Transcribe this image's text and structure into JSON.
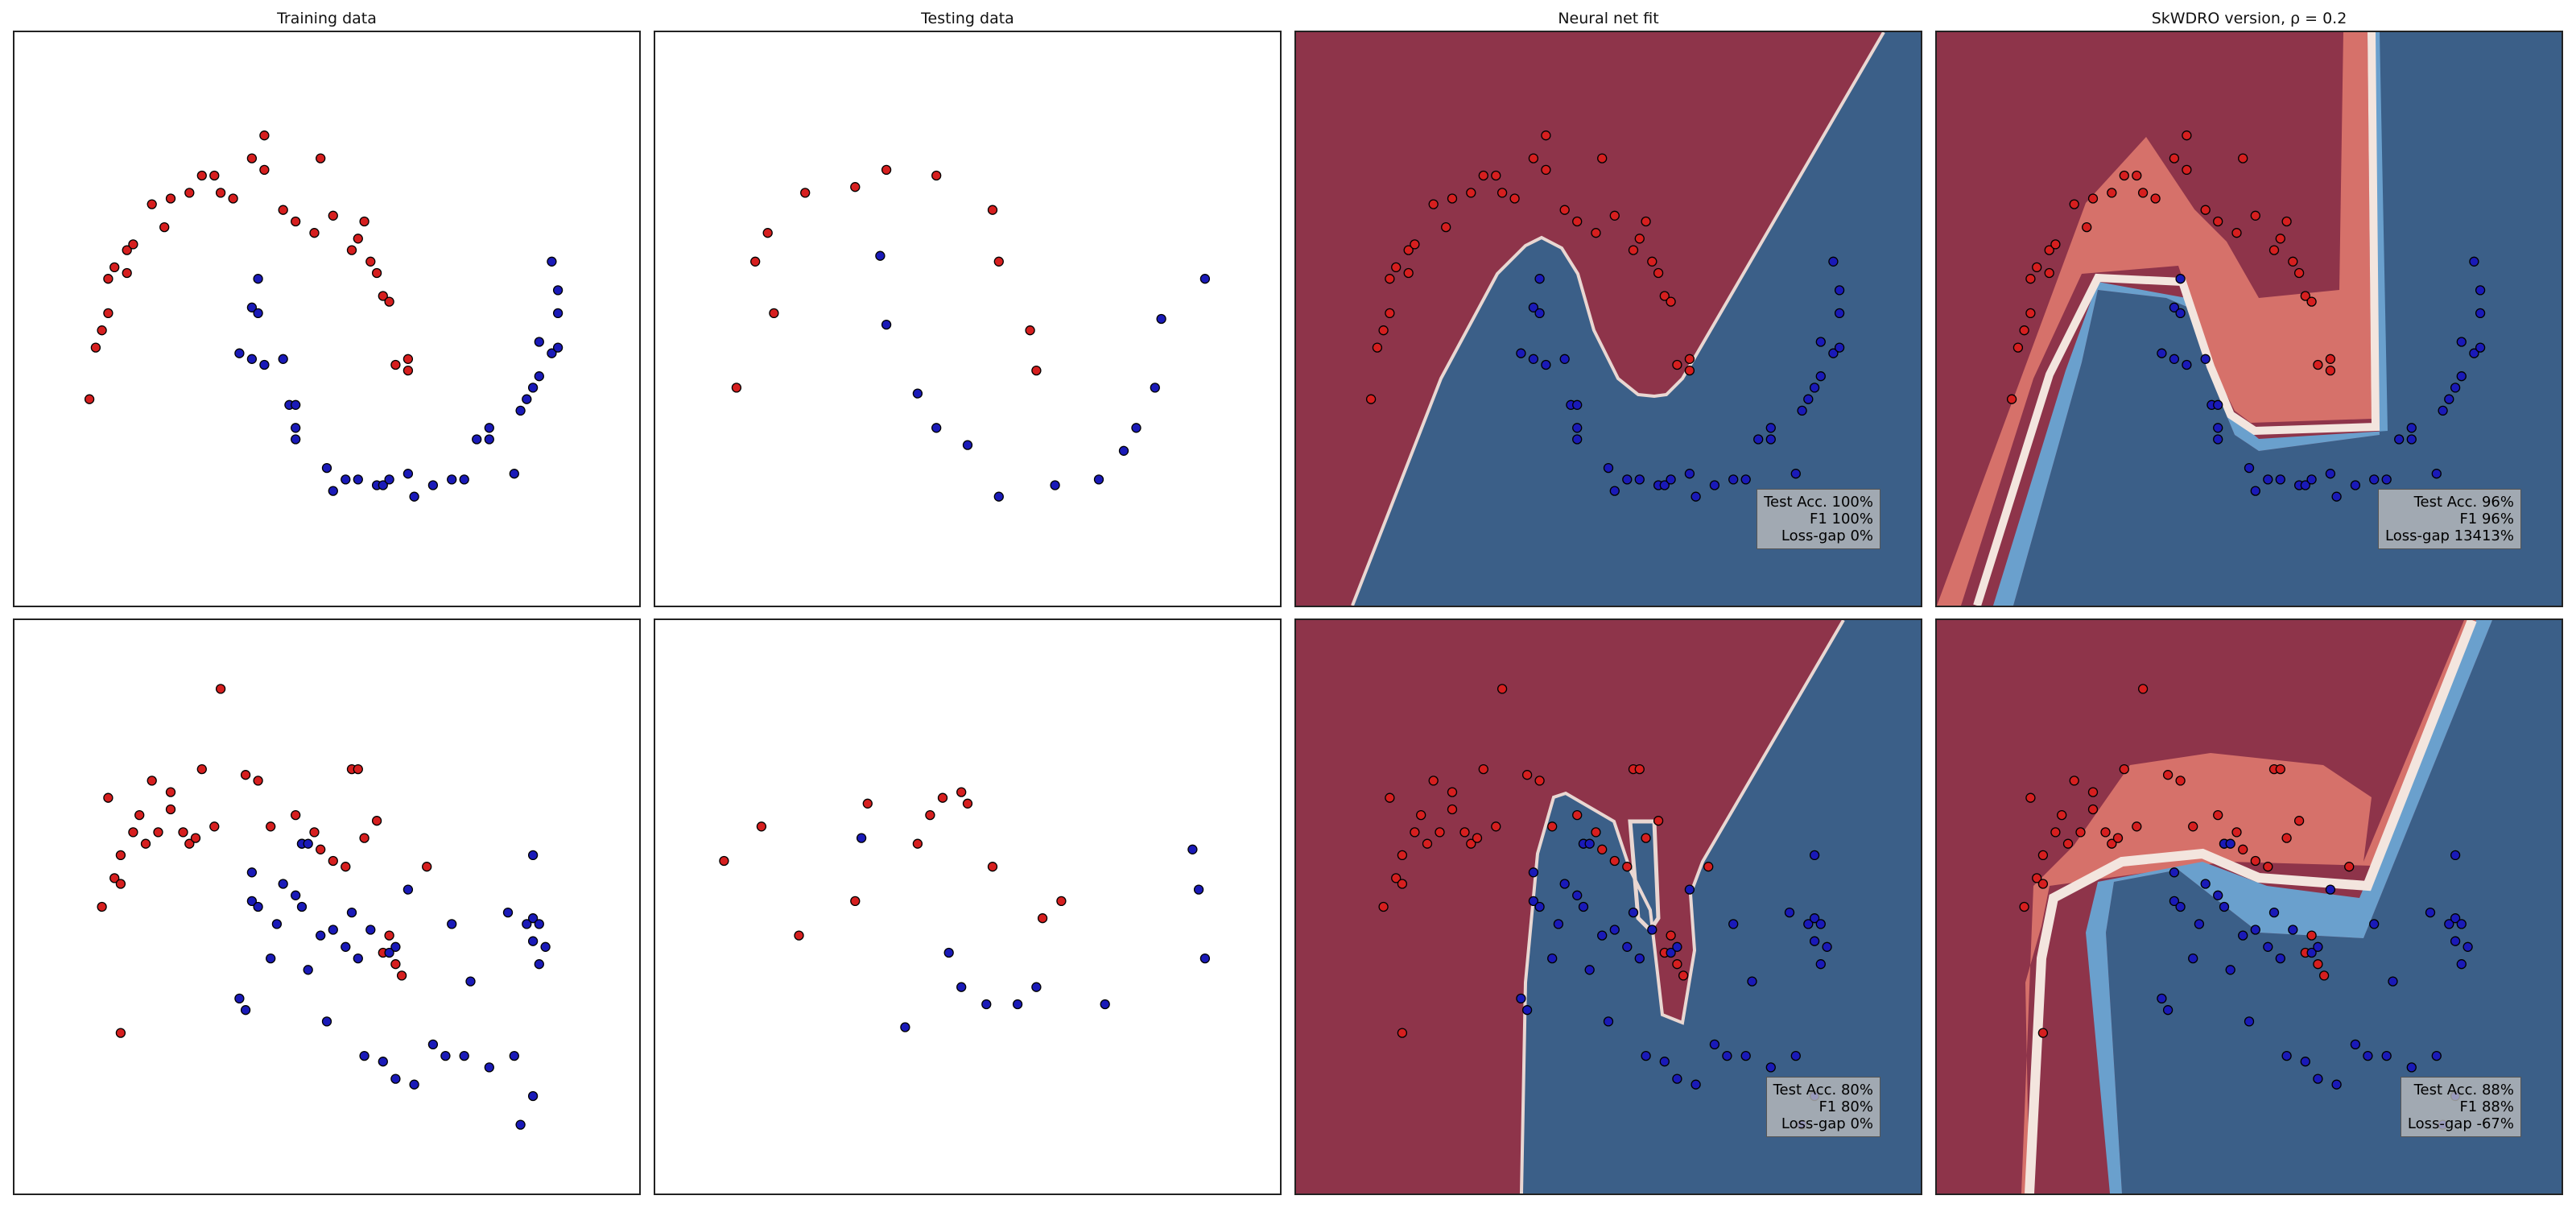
{
  "column_titles": [
    "Training data",
    "Testing data",
    "Neural net fit",
    "SkWDRO version, ρ = 0.2"
  ],
  "colors": {
    "red_class": "#d61f1f",
    "blue_class": "#1a1ab8",
    "red_region": "#8e344a",
    "blue_region": "#3b5f88",
    "red_light": "#d6716a",
    "blue_light": "#6aa0cd",
    "boundary": "#f3e5de"
  },
  "metrics": [
    {
      "panel": "row1-neural-net",
      "test_acc": "Test Acc. 100%",
      "f1": "F1 100%",
      "loss_gap": "Loss-gap 0%"
    },
    {
      "panel": "row1-skwdro",
      "test_acc": "Test Acc. 96%",
      "f1": "F1 96%",
      "loss_gap": "Loss-gap 13413%"
    },
    {
      "panel": "row2-neural-net",
      "test_acc": "Test Acc. 80%",
      "f1": "F1 80%",
      "loss_gap": "Loss-gap 0%"
    },
    {
      "panel": "row2-skwdro",
      "test_acc": "Test Acc. 88%",
      "f1": "F1 88%",
      "loss_gap": "Loss-gap -67%"
    }
  ],
  "chart_data": [
    {
      "type": "scatter",
      "row": 1,
      "xlim": [
        0,
        1
      ],
      "ylim": [
        0,
        1
      ],
      "train": [
        [
          0.12,
          0.36,
          "r"
        ],
        [
          0.13,
          0.45,
          "r"
        ],
        [
          0.14,
          0.48,
          "r"
        ],
        [
          0.15,
          0.51,
          "r"
        ],
        [
          0.15,
          0.57,
          "r"
        ],
        [
          0.16,
          0.59,
          "r"
        ],
        [
          0.18,
          0.58,
          "r"
        ],
        [
          0.18,
          0.62,
          "r"
        ],
        [
          0.19,
          0.63,
          "r"
        ],
        [
          0.22,
          0.7,
          "r"
        ],
        [
          0.24,
          0.66,
          "r"
        ],
        [
          0.25,
          0.71,
          "r"
        ],
        [
          0.28,
          0.72,
          "r"
        ],
        [
          0.3,
          0.75,
          "r"
        ],
        [
          0.32,
          0.75,
          "r"
        ],
        [
          0.33,
          0.72,
          "r"
        ],
        [
          0.35,
          0.71,
          "r"
        ],
        [
          0.38,
          0.78,
          "r"
        ],
        [
          0.4,
          0.76,
          "r"
        ],
        [
          0.4,
          0.82,
          "r"
        ],
        [
          0.43,
          0.69,
          "r"
        ],
        [
          0.45,
          0.67,
          "r"
        ],
        [
          0.48,
          0.65,
          "r"
        ],
        [
          0.49,
          0.78,
          "r"
        ],
        [
          0.51,
          0.68,
          "r"
        ],
        [
          0.54,
          0.62,
          "r"
        ],
        [
          0.55,
          0.64,
          "r"
        ],
        [
          0.56,
          0.67,
          "r"
        ],
        [
          0.57,
          0.6,
          "r"
        ],
        [
          0.58,
          0.58,
          "r"
        ],
        [
          0.59,
          0.54,
          "r"
        ],
        [
          0.6,
          0.53,
          "r"
        ],
        [
          0.61,
          0.42,
          "r"
        ],
        [
          0.63,
          0.43,
          "r"
        ],
        [
          0.63,
          0.41,
          "r"
        ],
        [
          0.36,
          0.44,
          "b"
        ],
        [
          0.38,
          0.43,
          "b"
        ],
        [
          0.38,
          0.52,
          "b"
        ],
        [
          0.39,
          0.51,
          "b"
        ],
        [
          0.39,
          0.57,
          "b"
        ],
        [
          0.4,
          0.42,
          "b"
        ],
        [
          0.43,
          0.43,
          "b"
        ],
        [
          0.44,
          0.35,
          "b"
        ],
        [
          0.45,
          0.35,
          "b"
        ],
        [
          0.45,
          0.31,
          "b"
        ],
        [
          0.45,
          0.29,
          "b"
        ],
        [
          0.5,
          0.24,
          "b"
        ],
        [
          0.51,
          0.2,
          "b"
        ],
        [
          0.53,
          0.22,
          "b"
        ],
        [
          0.55,
          0.22,
          "b"
        ],
        [
          0.58,
          0.21,
          "b"
        ],
        [
          0.59,
          0.21,
          "b"
        ],
        [
          0.6,
          0.22,
          "b"
        ],
        [
          0.63,
          0.23,
          "b"
        ],
        [
          0.64,
          0.19,
          "b"
        ],
        [
          0.67,
          0.21,
          "b"
        ],
        [
          0.7,
          0.22,
          "b"
        ],
        [
          0.72,
          0.22,
          "b"
        ],
        [
          0.74,
          0.29,
          "b"
        ],
        [
          0.76,
          0.29,
          "b"
        ],
        [
          0.76,
          0.31,
          "b"
        ],
        [
          0.8,
          0.23,
          "b"
        ],
        [
          0.81,
          0.34,
          "b"
        ],
        [
          0.82,
          0.36,
          "b"
        ],
        [
          0.83,
          0.38,
          "b"
        ],
        [
          0.84,
          0.4,
          "b"
        ],
        [
          0.84,
          0.46,
          "b"
        ],
        [
          0.86,
          0.44,
          "b"
        ],
        [
          0.87,
          0.45,
          "b"
        ],
        [
          0.87,
          0.51,
          "b"
        ],
        [
          0.87,
          0.55,
          "b"
        ],
        [
          0.86,
          0.6,
          "b"
        ]
      ],
      "test": [
        [
          0.13,
          0.38,
          "r"
        ],
        [
          0.16,
          0.6,
          "r"
        ],
        [
          0.18,
          0.65,
          "r"
        ],
        [
          0.19,
          0.51,
          "r"
        ],
        [
          0.24,
          0.72,
          "r"
        ],
        [
          0.32,
          0.73,
          "r"
        ],
        [
          0.37,
          0.76,
          "r"
        ],
        [
          0.45,
          0.75,
          "r"
        ],
        [
          0.54,
          0.69,
          "r"
        ],
        [
          0.55,
          0.6,
          "r"
        ],
        [
          0.6,
          0.48,
          "r"
        ],
        [
          0.61,
          0.41,
          "r"
        ],
        [
          0.36,
          0.61,
          "b"
        ],
        [
          0.37,
          0.49,
          "b"
        ],
        [
          0.42,
          0.37,
          "b"
        ],
        [
          0.45,
          0.31,
          "b"
        ],
        [
          0.5,
          0.28,
          "b"
        ],
        [
          0.55,
          0.19,
          "b"
        ],
        [
          0.64,
          0.21,
          "b"
        ],
        [
          0.71,
          0.22,
          "b"
        ],
        [
          0.75,
          0.27,
          "b"
        ],
        [
          0.77,
          0.31,
          "b"
        ],
        [
          0.8,
          0.38,
          "b"
        ],
        [
          0.81,
          0.5,
          "b"
        ],
        [
          0.88,
          0.57,
          "b"
        ]
      ]
    },
    {
      "type": "scatter",
      "row": 2,
      "xlim": [
        0,
        1
      ],
      "ylim": [
        0,
        1
      ],
      "train": [
        [
          0.14,
          0.5,
          "r"
        ],
        [
          0.15,
          0.69,
          "r"
        ],
        [
          0.16,
          0.55,
          "r"
        ],
        [
          0.17,
          0.59,
          "r"
        ],
        [
          0.17,
          0.54,
          "r"
        ],
        [
          0.17,
          0.28,
          "r"
        ],
        [
          0.19,
          0.63,
          "r"
        ],
        [
          0.2,
          0.66,
          "r"
        ],
        [
          0.21,
          0.61,
          "r"
        ],
        [
          0.22,
          0.72,
          "r"
        ],
        [
          0.23,
          0.63,
          "r"
        ],
        [
          0.25,
          0.7,
          "r"
        ],
        [
          0.25,
          0.67,
          "r"
        ],
        [
          0.27,
          0.63,
          "r"
        ],
        [
          0.28,
          0.61,
          "r"
        ],
        [
          0.29,
          0.62,
          "r"
        ],
        [
          0.3,
          0.74,
          "r"
        ],
        [
          0.32,
          0.64,
          "r"
        ],
        [
          0.33,
          0.88,
          "r"
        ],
        [
          0.37,
          0.73,
          "r"
        ],
        [
          0.39,
          0.72,
          "r"
        ],
        [
          0.41,
          0.64,
          "r"
        ],
        [
          0.45,
          0.66,
          "r"
        ],
        [
          0.46,
          0.61,
          "r"
        ],
        [
          0.48,
          0.63,
          "r"
        ],
        [
          0.49,
          0.6,
          "r"
        ],
        [
          0.51,
          0.58,
          "r"
        ],
        [
          0.53,
          0.57,
          "r"
        ],
        [
          0.54,
          0.74,
          "r"
        ],
        [
          0.55,
          0.74,
          "r"
        ],
        [
          0.56,
          0.62,
          "r"
        ],
        [
          0.58,
          0.65,
          "r"
        ],
        [
          0.59,
          0.42,
          "r"
        ],
        [
          0.6,
          0.45,
          "r"
        ],
        [
          0.61,
          0.4,
          "r"
        ],
        [
          0.62,
          0.38,
          "r"
        ],
        [
          0.66,
          0.57,
          "r"
        ],
        [
          0.36,
          0.34,
          "b"
        ],
        [
          0.37,
          0.32,
          "b"
        ],
        [
          0.38,
          0.51,
          "b"
        ],
        [
          0.38,
          0.56,
          "b"
        ],
        [
          0.39,
          0.5,
          "b"
        ],
        [
          0.41,
          0.41,
          "b"
        ],
        [
          0.42,
          0.47,
          "b"
        ],
        [
          0.43,
          0.54,
          "b"
        ],
        [
          0.45,
          0.52,
          "b"
        ],
        [
          0.46,
          0.5,
          "b"
        ],
        [
          0.46,
          0.61,
          "b"
        ],
        [
          0.47,
          0.61,
          "b"
        ],
        [
          0.47,
          0.39,
          "b"
        ],
        [
          0.49,
          0.45,
          "b"
        ],
        [
          0.5,
          0.3,
          "b"
        ],
        [
          0.51,
          0.46,
          "b"
        ],
        [
          0.53,
          0.43,
          "b"
        ],
        [
          0.54,
          0.49,
          "b"
        ],
        [
          0.55,
          0.41,
          "b"
        ],
        [
          0.56,
          0.24,
          "b"
        ],
        [
          0.57,
          0.46,
          "b"
        ],
        [
          0.59,
          0.23,
          "b"
        ],
        [
          0.6,
          0.42,
          "b"
        ],
        [
          0.61,
          0.43,
          "b"
        ],
        [
          0.61,
          0.2,
          "b"
        ],
        [
          0.63,
          0.53,
          "b"
        ],
        [
          0.64,
          0.19,
          "b"
        ],
        [
          0.67,
          0.26,
          "b"
        ],
        [
          0.69,
          0.24,
          "b"
        ],
        [
          0.7,
          0.47,
          "b"
        ],
        [
          0.72,
          0.24,
          "b"
        ],
        [
          0.73,
          0.37,
          "b"
        ],
        [
          0.76,
          0.22,
          "b"
        ],
        [
          0.79,
          0.49,
          "b"
        ],
        [
          0.8,
          0.24,
          "b"
        ],
        [
          0.81,
          0.12,
          "b"
        ],
        [
          0.82,
          0.47,
          "b"
        ],
        [
          0.83,
          0.48,
          "b"
        ],
        [
          0.83,
          0.59,
          "b"
        ],
        [
          0.83,
          0.44,
          "b"
        ],
        [
          0.84,
          0.4,
          "b"
        ],
        [
          0.84,
          0.47,
          "b"
        ],
        [
          0.85,
          0.43,
          "b"
        ],
        [
          0.83,
          0.17,
          "b"
        ]
      ],
      "test": [
        [
          0.11,
          0.58,
          "r"
        ],
        [
          0.17,
          0.64,
          "r"
        ],
        [
          0.23,
          0.45,
          "r"
        ],
        [
          0.32,
          0.51,
          "r"
        ],
        [
          0.34,
          0.68,
          "r"
        ],
        [
          0.42,
          0.61,
          "r"
        ],
        [
          0.44,
          0.66,
          "r"
        ],
        [
          0.46,
          0.69,
          "r"
        ],
        [
          0.5,
          0.68,
          "r"
        ],
        [
          0.49,
          0.7,
          "r"
        ],
        [
          0.54,
          0.57,
          "r"
        ],
        [
          0.62,
          0.48,
          "r"
        ],
        [
          0.65,
          0.51,
          "r"
        ],
        [
          0.33,
          0.62,
          "b"
        ],
        [
          0.4,
          0.29,
          "b"
        ],
        [
          0.47,
          0.42,
          "b"
        ],
        [
          0.49,
          0.36,
          "b"
        ],
        [
          0.53,
          0.33,
          "b"
        ],
        [
          0.58,
          0.33,
          "b"
        ],
        [
          0.61,
          0.36,
          "b"
        ],
        [
          0.72,
          0.33,
          "b"
        ],
        [
          0.86,
          0.6,
          "b"
        ],
        [
          0.87,
          0.53,
          "b"
        ],
        [
          0.88,
          0.41,
          "b"
        ]
      ]
    }
  ]
}
